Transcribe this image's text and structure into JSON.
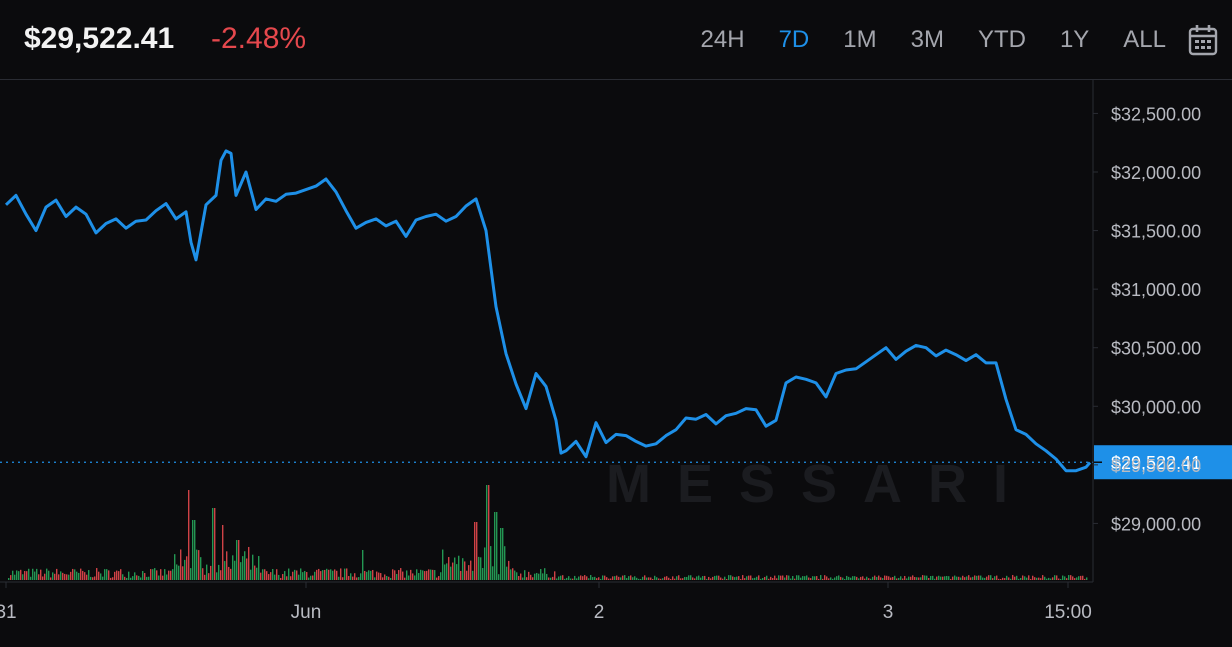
{
  "header": {
    "price": "$29,522.41",
    "change": "-2.48%",
    "ranges": [
      "24H",
      "7D",
      "1M",
      "3M",
      "YTD",
      "1Y",
      "ALL"
    ],
    "active_range": "7D"
  },
  "watermark": "MESSARI",
  "colors": {
    "line": "#1e90e8",
    "negative": "#e5484d",
    "vol_up": "#26a65b",
    "vol_down": "#e5484d",
    "axis_text": "#b9bbc2",
    "grid": "#2a2c33"
  },
  "icons": {
    "calendar": "calendar-icon"
  },
  "chart_data": {
    "type": "line",
    "title": "",
    "xlabel": "",
    "ylabel": "",
    "ylim": [
      28500,
      32700
    ],
    "y_ticks": [
      29000,
      29500,
      30000,
      30500,
      31000,
      31500,
      32000,
      32500
    ],
    "y_tick_labels": [
      "$29,000.00",
      "$29,500.00",
      "$30,000.00",
      "$30,500.00",
      "$31,000.00",
      "$31,500.00",
      "$32,000.00",
      "$32,500.00"
    ],
    "x_range": [
      0,
      1084
    ],
    "x_ticks": [
      {
        "x": 0,
        "label": "31"
      },
      {
        "x": 300,
        "label": "Jun"
      },
      {
        "x": 593,
        "label": "2"
      },
      {
        "x": 882,
        "label": "3"
      },
      {
        "x": 1062,
        "label": "15:00"
      }
    ],
    "current_value": 29522.41,
    "current_label": "$29,522.41",
    "series": [
      {
        "x": [
          0,
          10,
          20,
          30,
          40,
          50,
          60,
          70,
          80,
          90,
          100,
          110,
          120,
          130,
          140,
          150,
          160,
          170,
          180,
          185,
          190,
          200,
          210,
          215,
          220,
          225,
          230,
          240,
          250,
          260,
          270,
          280,
          290,
          300,
          310,
          320,
          330,
          340,
          350,
          360,
          370,
          380,
          390,
          400,
          410,
          420,
          430,
          440,
          450,
          460,
          470,
          480,
          490,
          500,
          510,
          520,
          530,
          540,
          550,
          555,
          560,
          570,
          580,
          590,
          600,
          610,
          620,
          630,
          640,
          650,
          660,
          670,
          680,
          690,
          700,
          710,
          720,
          730,
          740,
          750,
          760,
          770,
          780,
          790,
          800,
          810,
          820,
          830,
          840,
          850,
          860,
          870,
          880,
          890,
          900,
          910,
          920,
          930,
          940,
          950,
          960,
          970,
          980,
          990,
          1000,
          1010,
          1020,
          1030,
          1040,
          1050,
          1060,
          1070,
          1080,
          1084
        ],
        "values": [
          31720,
          31800,
          31640,
          31500,
          31700,
          31760,
          31620,
          31700,
          31640,
          31480,
          31560,
          31600,
          31520,
          31580,
          31590,
          31670,
          31730,
          31600,
          31660,
          31400,
          31250,
          31720,
          31800,
          32100,
          32180,
          32160,
          31800,
          32000,
          31680,
          31770,
          31750,
          31810,
          31820,
          31850,
          31880,
          31940,
          31830,
          31670,
          31520,
          31570,
          31600,
          31540,
          31580,
          31450,
          31590,
          31620,
          31640,
          31580,
          31620,
          31710,
          31770,
          31500,
          30850,
          30450,
          30190,
          29980,
          30280,
          30170,
          29880,
          29600,
          29620,
          29700,
          29570,
          29860,
          29690,
          29760,
          29750,
          29700,
          29660,
          29680,
          29750,
          29800,
          29900,
          29890,
          29930,
          29850,
          29920,
          29940,
          29980,
          29970,
          29830,
          29880,
          30200,
          30250,
          30230,
          30200,
          30080,
          30280,
          30310,
          30320,
          30380,
          30440,
          30500,
          30400,
          30470,
          30520,
          30500,
          30430,
          30480,
          30440,
          30390,
          30440,
          30370,
          30370,
          30060,
          29800,
          29760,
          29680,
          29620,
          29550,
          29450,
          29450,
          29480,
          29520
        ]
      }
    ]
  }
}
